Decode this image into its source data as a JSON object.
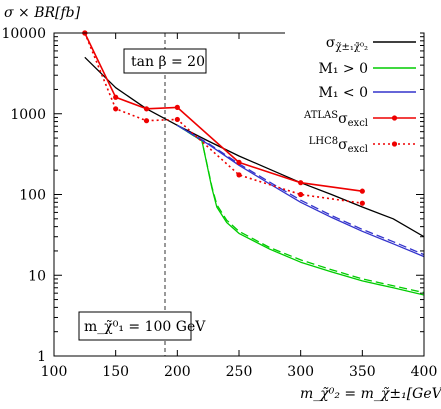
{
  "chart_data": {
    "type": "line",
    "ylabel": "σ × BR[fb]",
    "xlabel": "m_χ̃⁰₂ = m_χ̃±₁[GeV]",
    "xlim": [
      100,
      400
    ],
    "ylim": [
      1,
      10000
    ],
    "y_scale": "log",
    "x_ticks": [
      100,
      150,
      200,
      250,
      300,
      350,
      400
    ],
    "x_tick_labels": [
      "100",
      "150",
      "200",
      "250",
      "300",
      "350",
      "400"
    ],
    "y_ticks": [
      1,
      10,
      100,
      1000,
      10000
    ],
    "y_tick_labels": [
      "1",
      "10",
      "100",
      "1000",
      "10000"
    ],
    "vline_x": 190,
    "annotations": [
      {
        "text": "tan β = 20",
        "position": "top-left"
      },
      {
        "text": "m_χ̃⁰₁ = 100 GeV",
        "position": "bottom-left"
      }
    ],
    "legend_position": "top-right",
    "series": [
      {
        "name": "σ_χ̃±₁χ̃⁰₂",
        "color": "#000000",
        "style": "solid",
        "x": [
          125,
          150,
          175,
          200,
          225,
          250,
          275,
          300,
          325,
          350,
          375,
          400
        ],
        "values": [
          5000,
          2100,
          1150,
          720,
          460,
          300,
          205,
          140,
          100,
          70,
          50,
          30
        ]
      },
      {
        "name": "M₁ > 0",
        "color": "#00cc00",
        "style": "solid",
        "x": [
          200,
          220,
          228,
          232,
          240,
          250,
          275,
          300,
          325,
          350,
          375,
          400
        ],
        "values": [
          720,
          460,
          120,
          70,
          45,
          33,
          21,
          14.5,
          11,
          8.5,
          7,
          5.7
        ]
      },
      {
        "name": "M₁ > 0 (alt)",
        "color": "#00cc00",
        "style": "dashed",
        "x": [
          200,
          220,
          228,
          232,
          240,
          250,
          275,
          300,
          325,
          350,
          375,
          400
        ],
        "values": [
          720,
          460,
          125,
          75,
          48,
          35,
          22,
          15.5,
          11.7,
          9,
          7.4,
          6.1
        ]
      },
      {
        "name": "M₁ < 0",
        "color": "#3333cc",
        "style": "solid",
        "x": [
          200,
          225,
          250,
          275,
          300,
          325,
          350,
          375,
          400
        ],
        "values": [
          720,
          420,
          230,
          135,
          80,
          52,
          35,
          24.5,
          17
        ]
      },
      {
        "name": "M₁ < 0 (alt)",
        "color": "#3333cc",
        "style": "dashed",
        "x": [
          200,
          225,
          250,
          275,
          300,
          325,
          350,
          375,
          400
        ],
        "values": [
          720,
          430,
          240,
          142,
          85,
          55,
          37,
          26,
          18
        ]
      },
      {
        "name": "ATLAS σ_excl",
        "color": "#ee0000",
        "style": "solid",
        "marker": "circle",
        "x": [
          125,
          150,
          175,
          200,
          250,
          300,
          350
        ],
        "values": [
          10000,
          1600,
          1150,
          1200,
          250,
          140,
          110
        ]
      },
      {
        "name": "LHC8 σ_excl",
        "color": "#ee0000",
        "style": "dotted",
        "marker": "circle",
        "x": [
          125,
          150,
          175,
          200,
          250,
          300,
          350
        ],
        "values": [
          10000,
          1150,
          820,
          850,
          175,
          100,
          78
        ]
      }
    ],
    "legend": [
      {
        "label": "σ",
        "sub": "χ̃±₁χ̃⁰₂",
        "pre": "",
        "color": "#000000",
        "style": "solid",
        "marker": false
      },
      {
        "label": "M₁ > 0",
        "sub": "",
        "pre": "",
        "color": "#00cc00",
        "style": "solid",
        "marker": false
      },
      {
        "label": "M₁ < 0",
        "sub": "",
        "pre": "",
        "color": "#3333cc",
        "style": "solid",
        "marker": false
      },
      {
        "label": "σ",
        "sub": "excl",
        "pre": "ATLAS",
        "color": "#ee0000",
        "style": "solid",
        "marker": true
      },
      {
        "label": "σ",
        "sub": "excl",
        "pre": "LHC8",
        "color": "#ee0000",
        "style": "dotted",
        "marker": true
      }
    ]
  }
}
